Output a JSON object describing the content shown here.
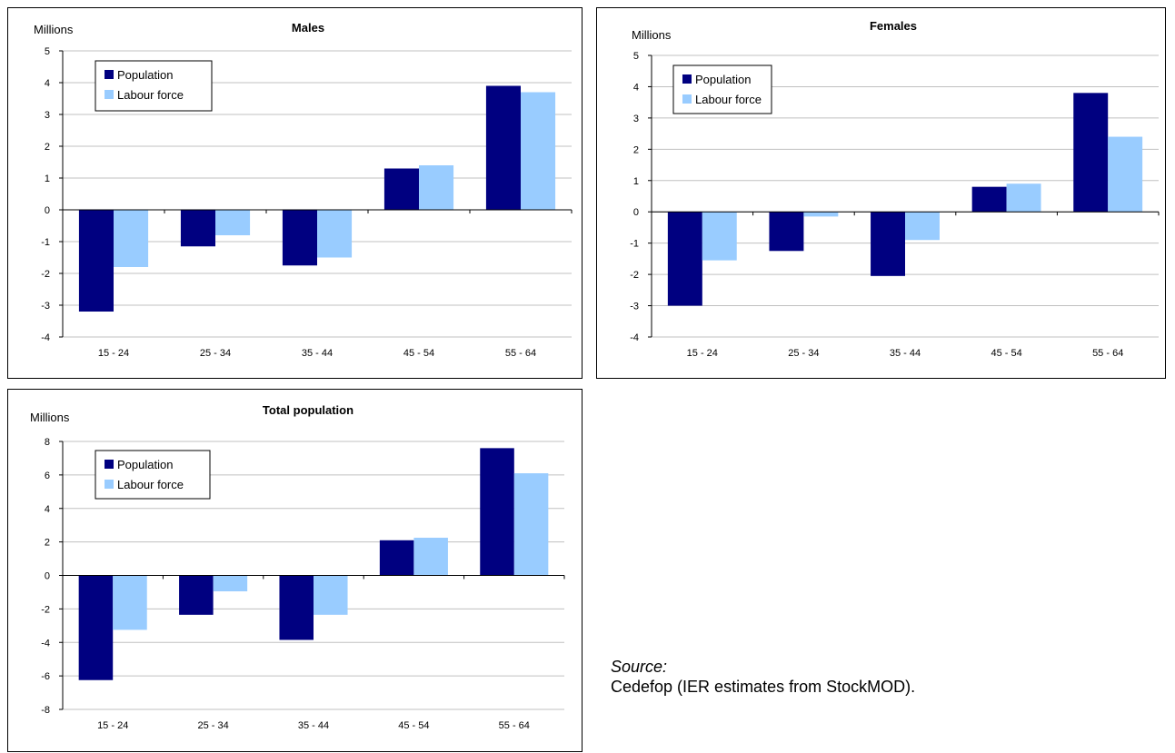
{
  "chart_data": [
    {
      "type": "bar",
      "title": "Males",
      "ylabel": "Millions",
      "categories": [
        "15 - 24",
        "25 - 34",
        "35 - 44",
        "45 - 54",
        "55 - 64"
      ],
      "yticks": [
        "5",
        "4",
        "3",
        "2",
        "1",
        "0",
        "-1",
        "-2",
        "-3",
        "-4"
      ],
      "ylim": [
        -4,
        5
      ],
      "legend": "top-left",
      "grid": true,
      "series": [
        {
          "name": "Population",
          "values": [
            -3.2,
            -1.15,
            -1.75,
            1.3,
            3.9
          ]
        },
        {
          "name": "Labour force",
          "values": [
            -1.8,
            -0.8,
            -1.5,
            1.4,
            3.7
          ]
        }
      ]
    },
    {
      "type": "bar",
      "title": "Females",
      "ylabel": "Millions",
      "categories": [
        "15 - 24",
        "25 - 34",
        "35 - 44",
        "45 - 54",
        "55 - 64"
      ],
      "yticks": [
        "5",
        "4",
        "3",
        "2",
        "1",
        "0",
        "-1",
        "-2",
        "-3",
        "-4"
      ],
      "ylim": [
        -4,
        5
      ],
      "legend": "top-left",
      "grid": true,
      "series": [
        {
          "name": "Population",
          "values": [
            -3.0,
            -1.25,
            -2.05,
            0.8,
            3.8
          ]
        },
        {
          "name": "Labour force",
          "values": [
            -1.55,
            -0.15,
            -0.9,
            0.9,
            2.4
          ]
        }
      ]
    },
    {
      "type": "bar",
      "title": "Total population",
      "ylabel": "Millions",
      "categories": [
        "15 - 24",
        "25 - 34",
        "35 - 44",
        "45 - 54",
        "55 - 64"
      ],
      "yticks": [
        "8",
        "6",
        "4",
        "2",
        "0",
        "-2",
        "-4",
        "-6",
        "-8"
      ],
      "ylim": [
        -8,
        8
      ],
      "legend": "top-left",
      "grid": true,
      "series": [
        {
          "name": "Population",
          "values": [
            -6.25,
            -2.35,
            -3.85,
            2.1,
            7.6
          ]
        },
        {
          "name": "Labour force",
          "values": [
            -3.25,
            -0.95,
            -2.35,
            2.25,
            6.1
          ]
        }
      ]
    }
  ],
  "colors": {
    "population": "#000080",
    "labour_force": "#99ccff",
    "grid": "#c0c0c0"
  },
  "source": {
    "label": "Source:",
    "text": "Cedefop (IER estimates from StockMOD)."
  }
}
